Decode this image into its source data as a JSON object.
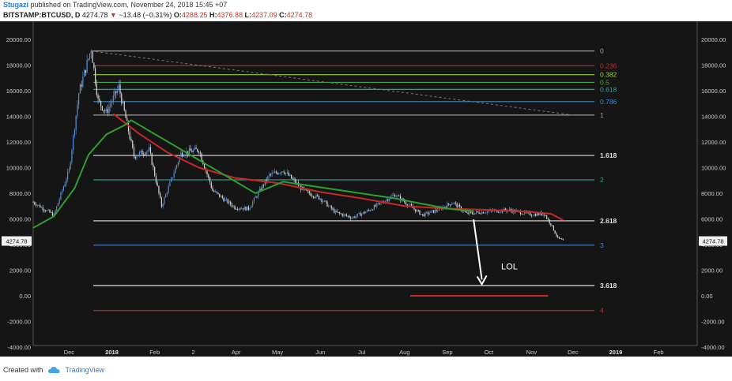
{
  "header": {
    "username": "Stugazi",
    "published_text": "published on TradingView.com, November 24, 2018 15:45 +07",
    "symbol": "BITSTAMP:BTCUSD, D",
    "last": "4274.78",
    "arrow": "▼",
    "change": "−13.48 (−0.31%)",
    "o_label": "O:",
    "o_value": "4288.25",
    "h_label": "H:",
    "h_value": "4376.88",
    "l_label": "L:",
    "l_value": "4237.09",
    "c_label": "C:",
    "c_value": "4274.78"
  },
  "footer": {
    "created_with": "Created with",
    "brand": "TradingView"
  },
  "colors": {
    "background": "#151515",
    "candle_up": "#5b8fd6",
    "candle_down": "#d9d9d9",
    "ma_red": "#c62828",
    "ma_green": "#2e9e2e",
    "annotation": "#ffffff"
  },
  "chart_data": {
    "type": "line",
    "title": "",
    "xlabel": "",
    "ylabel": "",
    "ylim": [
      -4000,
      21000
    ],
    "y_ticks": [
      "20000.00",
      "18000.00",
      "16000.00",
      "14000.00",
      "12000.00",
      "10000.00",
      "8000.00",
      "6000.00",
      "4000.00",
      "2000.00",
      "0.00",
      "-2000.00",
      "-4000.00"
    ],
    "x_ticks": [
      "Dec",
      "2018",
      "Feb",
      "2",
      "Apr",
      "May",
      "Jun",
      "Jul",
      "Aug",
      "Sep",
      "Oct",
      "Nov",
      "Dec",
      "2019",
      "Feb"
    ],
    "x_ticks_bold": [
      "2018",
      "2019"
    ],
    "last_price_label": "4274.78",
    "fib_levels": [
      {
        "label": "0",
        "value": 19100,
        "color": "#9e9e9e"
      },
      {
        "label": "0.236",
        "value": 17950,
        "color": "#c62828"
      },
      {
        "label": "0.382",
        "value": 17250,
        "color": "#9ccc3a"
      },
      {
        "label": "0.5",
        "value": 16650,
        "color": "#43a047"
      },
      {
        "label": "0.618",
        "value": 16100,
        "color": "#26a69a"
      },
      {
        "label": "0.786",
        "value": 15150,
        "color": "#3f87c8"
      },
      {
        "label": "1",
        "value": 14100,
        "color": "#9e9e9e"
      },
      {
        "label": "1.618",
        "value": 10950,
        "color": "#e0e0e0"
      },
      {
        "label": "2",
        "value": 9050,
        "color": "#26a69a"
      },
      {
        "label": "2.618",
        "value": 5850,
        "color": "#e0e0e0"
      },
      {
        "label": "3",
        "value": 3950,
        "color": "#3f87c8"
      },
      {
        "label": "3.618",
        "value": 800,
        "color": "#e0e0e0"
      },
      {
        "label": "4",
        "value": -1150,
        "color": "#c62828"
      }
    ],
    "series": [
      {
        "name": "",
        "x": [
          "2017-11-05",
          "2017-11-20",
          "2017-12-01",
          "2017-12-08",
          "2017-12-17",
          "2017-12-22",
          "2017-12-28",
          "2018-01-06",
          "2018-01-17",
          "2018-01-28",
          "2018-02-06",
          "2018-02-20",
          "2018-03-05",
          "2018-03-15",
          "2018-03-31",
          "2018-04-10",
          "2018-04-25",
          "2018-05-05",
          "2018-05-20",
          "2018-06-01",
          "2018-06-12",
          "2018-06-24",
          "2018-07-05",
          "2018-07-25",
          "2018-08-05",
          "2018-08-14",
          "2018-08-25",
          "2018-09-05",
          "2018-09-15",
          "2018-10-01",
          "2018-10-15",
          "2018-11-01",
          "2018-11-10",
          "2018-11-15",
          "2018-11-20",
          "2018-11-24"
        ],
        "values": [
          7300,
          6300,
          9800,
          15800,
          19300,
          15200,
          14300,
          16300,
          10900,
          11400,
          7000,
          11100,
          11400,
          8200,
          6900,
          6800,
          9400,
          9800,
          8200,
          7600,
          6500,
          6100,
          6600,
          7900,
          7000,
          6300,
          6700,
          7300,
          6400,
          6600,
          6700,
          6350,
          6400,
          5600,
          4500,
          4275
        ]
      },
      {
        "name": "",
        "x": [
          "2018-01-02",
          "2018-01-20",
          "2018-02-10",
          "2018-03-05",
          "2018-03-31",
          "2018-05-01",
          "2018-06-01",
          "2018-07-01",
          "2018-08-01",
          "2018-09-01",
          "2018-10-01",
          "2018-11-01",
          "2018-11-15",
          "2018-11-24"
        ],
        "values": [
          14200,
          12700,
          11200,
          10000,
          9200,
          8800,
          8100,
          7600,
          7000,
          6800,
          6700,
          6550,
          6400,
          5900
        ]
      },
      {
        "name": "",
        "x": [
          "2017-11-05",
          "2017-11-20",
          "2017-12-05",
          "2017-12-15",
          "2017-12-28",
          "2018-01-10",
          "2018-01-15",
          "2018-04-15",
          "2018-05-05",
          "2018-07-25",
          "2018-08-08",
          "2018-09-01",
          "2018-09-20"
        ],
        "values": [
          5300,
          6200,
          8400,
          11000,
          12600,
          13300,
          13700,
          8000,
          8900,
          7600,
          7300,
          6800,
          6600
        ]
      }
    ],
    "annotations": [
      {
        "type": "arrow",
        "from": {
          "x": "2018-09-20",
          "y": 5950
        },
        "to": {
          "x": "2018-09-26",
          "y": 900
        }
      },
      {
        "type": "text",
        "label": "LOL",
        "x": "2018-10-10",
        "y": 2050
      },
      {
        "type": "hline",
        "x0": "2018-08-05",
        "x1": "2018-11-13",
        "y": 0,
        "color": "#c62828"
      },
      {
        "type": "trendline",
        "x0": "2017-12-17",
        "y0": 19100,
        "x1": "2018-12-01",
        "y1": 14100,
        "style": "dashed"
      }
    ]
  }
}
